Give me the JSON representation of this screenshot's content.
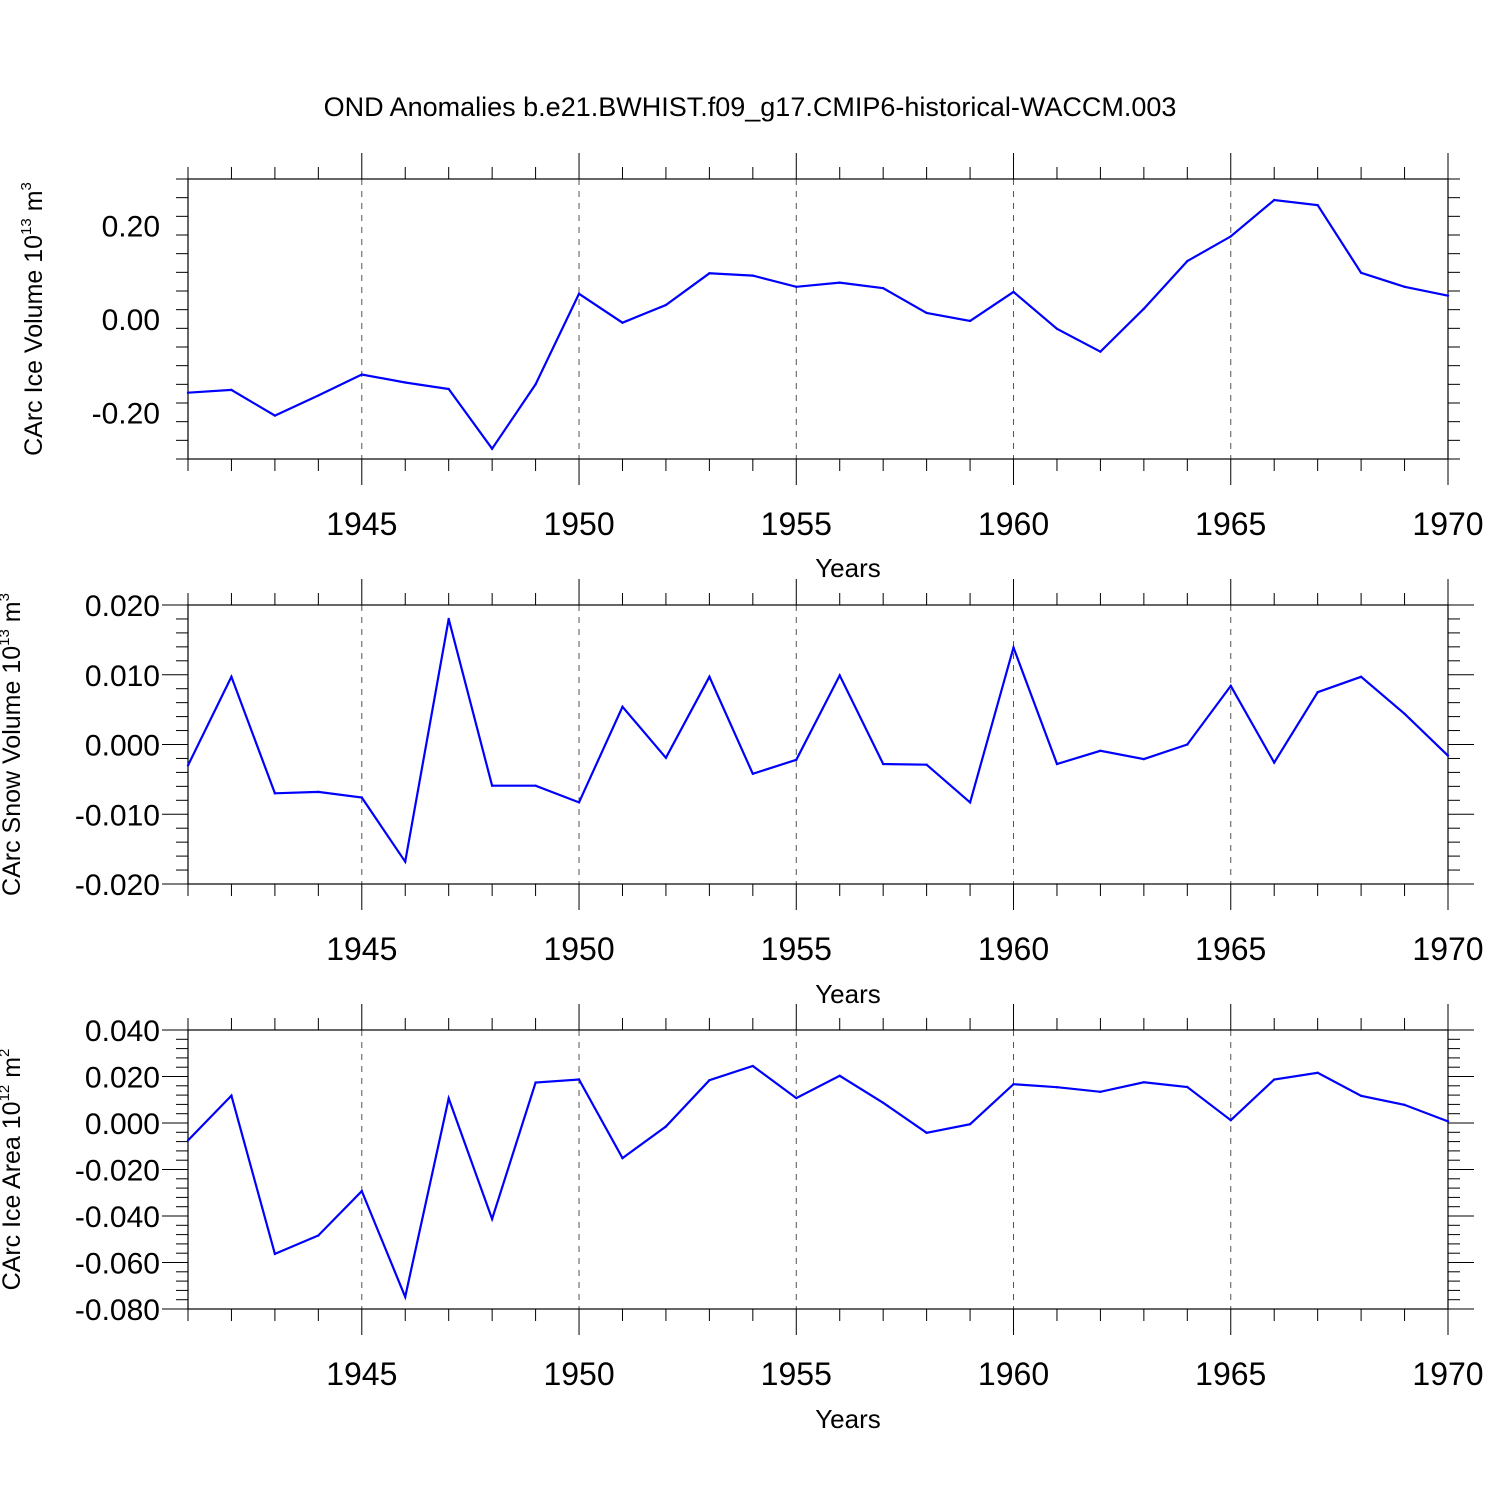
{
  "title": "OND Anomalies b.e21.BWHIST.f09_g17.CMIP6-historical-WACCM.003",
  "colors": {
    "line": "#0000ff",
    "axis": "#000000",
    "grid": "#555555"
  },
  "chart_data": [
    {
      "type": "line",
      "ylabel_main": "CArc Ice Volume 10",
      "ylabel_exp": "13",
      "ylabel_unit": " m",
      "ylabel_unit_exp": "3",
      "xlabel": "Years",
      "xlim": [
        1941,
        1970
      ],
      "ylim": [
        -0.3,
        0.3
      ],
      "yticks": [
        -0.2,
        0.0,
        0.2
      ],
      "ytick_labels": [
        "-0.20",
        "0.00",
        "0.20"
      ],
      "xticks": [
        1945,
        1950,
        1955,
        1960,
        1965,
        1970
      ],
      "xtick_labels": [
        "1945",
        "1950",
        "1955",
        "1960",
        "1965",
        "1970"
      ],
      "x": [
        1941,
        1942,
        1943,
        1944,
        1945,
        1946,
        1947,
        1948,
        1949,
        1950,
        1951,
        1952,
        1953,
        1954,
        1955,
        1956,
        1957,
        1958,
        1959,
        1960,
        1961,
        1962,
        1963,
        1964,
        1965,
        1966,
        1967,
        1968,
        1969,
        1970
      ],
      "values": [
        -0.158,
        -0.152,
        -0.207,
        -0.164,
        -0.119,
        -0.136,
        -0.15,
        -0.278,
        -0.14,
        0.054,
        -0.008,
        0.03,
        0.098,
        0.093,
        0.069,
        0.078,
        0.066,
        0.013,
        -0.004,
        0.058,
        -0.021,
        -0.07,
        0.022,
        0.124,
        0.177,
        0.255,
        0.244,
        0.099,
        0.069,
        0.05
      ]
    },
    {
      "type": "line",
      "ylabel_main": "CArc Snow Volume 10",
      "ylabel_exp": "13",
      "ylabel_unit": " m",
      "ylabel_unit_exp": "3",
      "xlabel": "Years",
      "xlim": [
        1941,
        1970
      ],
      "ylim": [
        -0.02,
        0.02
      ],
      "yticks": [
        -0.02,
        -0.01,
        0.0,
        0.01,
        0.02
      ],
      "ytick_labels": [
        "-0.020",
        "-0.010",
        "0.000",
        "0.010",
        "0.020"
      ],
      "xticks": [
        1945,
        1950,
        1955,
        1960,
        1965,
        1970
      ],
      "xtick_labels": [
        "1945",
        "1950",
        "1955",
        "1960",
        "1965",
        "1970"
      ],
      "x": [
        1941,
        1942,
        1943,
        1944,
        1945,
        1946,
        1947,
        1948,
        1949,
        1950,
        1951,
        1952,
        1953,
        1954,
        1955,
        1956,
        1957,
        1958,
        1959,
        1960,
        1961,
        1962,
        1963,
        1964,
        1965,
        1966,
        1967,
        1968,
        1969,
        1970
      ],
      "values": [
        -0.003,
        0.0097,
        -0.007,
        -0.0068,
        -0.0076,
        -0.0168,
        0.018,
        -0.0059,
        -0.0059,
        -0.0083,
        0.0054,
        -0.0019,
        0.0097,
        -0.0042,
        -0.0022,
        0.0099,
        -0.0028,
        -0.0029,
        -0.0083,
        0.0139,
        -0.0028,
        -0.0009,
        -0.0021,
        0.0,
        0.0084,
        -0.0026,
        0.0075,
        0.0097,
        0.0044,
        -0.0016
      ]
    },
    {
      "type": "line",
      "ylabel_main": "CArc Ice Area 10",
      "ylabel_exp": "12",
      "ylabel_unit": " m",
      "ylabel_unit_exp": "2",
      "xlabel": "Years",
      "xlim": [
        1941,
        1970
      ],
      "ylim": [
        -0.08,
        0.04
      ],
      "yticks": [
        -0.08,
        -0.06,
        -0.04,
        -0.02,
        0.0,
        0.02,
        0.04
      ],
      "ytick_labels": [
        "-0.080",
        "-0.060",
        "-0.040",
        "-0.020",
        "0.000",
        "0.020",
        "0.040"
      ],
      "xticks": [
        1945,
        1950,
        1955,
        1960,
        1965,
        1970
      ],
      "xtick_labels": [
        "1945",
        "1950",
        "1955",
        "1960",
        "1965",
        "1970"
      ],
      "x": [
        1941,
        1942,
        1943,
        1944,
        1945,
        1946,
        1947,
        1948,
        1949,
        1950,
        1951,
        1952,
        1953,
        1954,
        1955,
        1956,
        1957,
        1958,
        1959,
        1960,
        1961,
        1962,
        1963,
        1964,
        1965,
        1966,
        1967,
        1968,
        1969,
        1970
      ],
      "values": [
        -0.0075,
        0.0118,
        -0.0563,
        -0.0484,
        -0.0293,
        -0.0748,
        0.0106,
        -0.0413,
        0.0174,
        0.0187,
        -0.0151,
        -0.0015,
        0.0184,
        0.0245,
        0.0107,
        0.0203,
        0.0087,
        -0.0042,
        -0.0005,
        0.0167,
        0.0154,
        0.0134,
        0.0175,
        0.0155,
        0.0012,
        0.0187,
        0.0216,
        0.0117,
        0.0078,
        0.0007
      ]
    }
  ]
}
